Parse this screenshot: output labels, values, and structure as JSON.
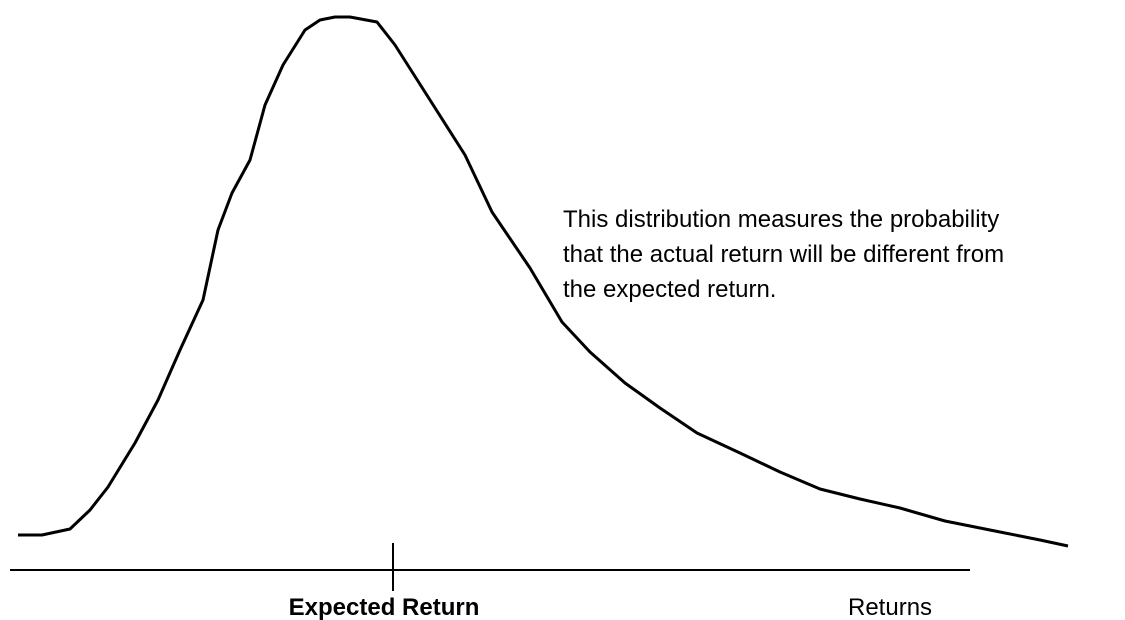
{
  "annotation": {
    "lines": [
      "This distribution measures the probability",
      "that the actual return will be different from",
      "the expected return."
    ]
  },
  "axis": {
    "center_label": "Expected Return",
    "end_label": "Returns"
  }
}
